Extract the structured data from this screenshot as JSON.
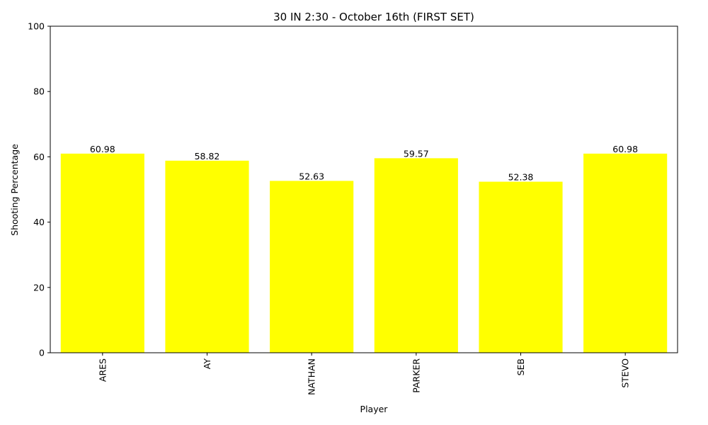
{
  "chart_data": {
    "type": "bar",
    "title": "30 IN 2:30 - October 16th (FIRST SET)",
    "xlabel": "Player",
    "ylabel": "Shooting Percentage",
    "categories": [
      "ARES",
      "AY",
      "NATHAN",
      "PARKER",
      "SEB",
      "STEVO"
    ],
    "values": [
      60.98,
      58.82,
      52.63,
      59.57,
      52.38,
      60.98
    ],
    "data_labels": [
      "60.98",
      "58.82",
      "52.63",
      "59.57",
      "52.38",
      "60.98"
    ],
    "ylim": [
      0,
      100
    ],
    "yticks": [
      0,
      20,
      40,
      60,
      80,
      100
    ],
    "bar_color": "#ffff00",
    "grid": false,
    "x_tick_rotation": "vertical"
  }
}
